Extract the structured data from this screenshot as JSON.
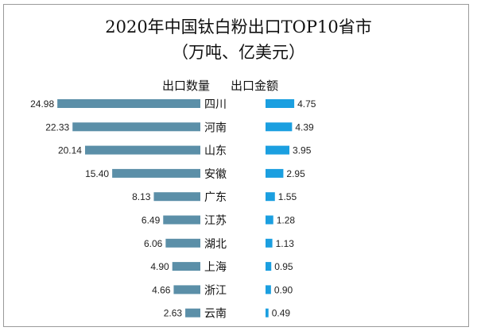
{
  "chart_data": {
    "type": "bar",
    "title": "2020年中国钛白粉出口TOP10省市",
    "subtitle": "（万吨、亿美元）",
    "categories": [
      "四川",
      "河南",
      "山东",
      "安徽",
      "广东",
      "江苏",
      "湖北",
      "上海",
      "浙江",
      "云南"
    ],
    "series": [
      {
        "name": "出口数量",
        "values": [
          24.98,
          22.33,
          20.14,
          15.4,
          8.13,
          6.49,
          6.06,
          4.9,
          4.66,
          2.63
        ],
        "color": "#5b8fa8",
        "direction": "left"
      },
      {
        "name": "出口金额",
        "values": [
          4.75,
          4.39,
          3.95,
          2.95,
          1.55,
          1.28,
          1.13,
          0.95,
          0.9,
          0.49
        ],
        "color": "#1b9fe0",
        "direction": "right"
      }
    ],
    "grid": false
  }
}
